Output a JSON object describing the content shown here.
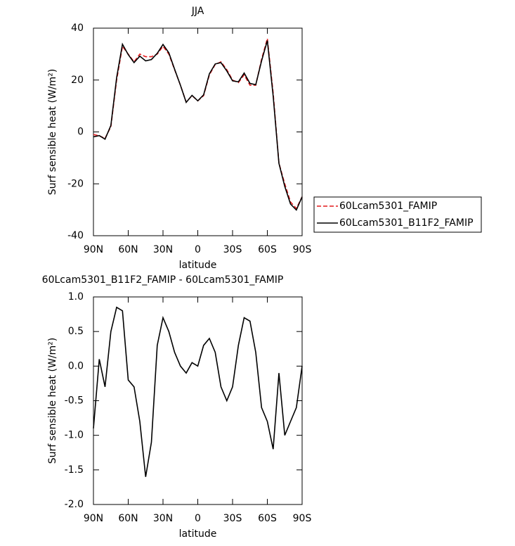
{
  "chart_data": [
    {
      "type": "line",
      "title": "JJA",
      "x_label": "latitude",
      "y_label": "Surf sensible heat (W/m²)",
      "x": [
        90,
        85,
        80,
        75,
        70,
        65,
        60,
        55,
        50,
        45,
        40,
        35,
        30,
        25,
        20,
        15,
        10,
        5,
        0,
        -5,
        -10,
        -15,
        -20,
        -25,
        -30,
        -35,
        -40,
        -45,
        -50,
        -55,
        -60,
        -65,
        -70,
        -75,
        -80,
        -85,
        -90
      ],
      "series": [
        {
          "name": "60Lcam5301_FAMIP",
          "color": "#e41a1c",
          "dash": true,
          "values": [
            -1,
            -1.5,
            -2.5,
            2,
            20,
            33,
            30,
            27,
            30,
            29,
            29,
            30,
            33,
            30,
            24,
            18,
            11.5,
            14,
            12,
            14,
            22,
            26,
            27,
            24,
            20,
            19,
            22,
            18,
            18,
            28,
            36,
            15,
            -12,
            -20,
            -27,
            -29.5,
            -25
          ]
        },
        {
          "name": "60Lcam5301_B11F2_FAMIP",
          "color": "#000000",
          "dash": false,
          "values": [
            -1.9,
            -1.4,
            -2.8,
            2.5,
            20.9,
            33.8,
            29.8,
            26.7,
            29.2,
            27.4,
            27.9,
            30.3,
            33.7,
            30.5,
            24.2,
            18,
            11.4,
            14.1,
            12,
            14.3,
            22.4,
            26.2,
            26.7,
            23.5,
            19.7,
            19.3,
            22.7,
            18.7,
            18.2,
            27.4,
            35.2,
            13.8,
            -12.1,
            -21,
            -27.8,
            -30.1,
            -25
          ]
        }
      ],
      "xlim": [
        90,
        -90
      ],
      "xticks": [
        {
          "value": 90,
          "label": "90N"
        },
        {
          "value": 60,
          "label": "60N"
        },
        {
          "value": 30,
          "label": "30N"
        },
        0,
        {
          "value": -30,
          "label": "30S"
        },
        {
          "value": -60,
          "label": "60S"
        },
        {
          "value": -90,
          "label": "90S"
        }
      ],
      "ylim": [
        -40,
        40
      ],
      "yticks": [
        -40,
        -20,
        0,
        20,
        40
      ],
      "legend": "right"
    },
    {
      "type": "line",
      "title": "60Lcam5301_B11F2_FAMIP - 60Lcam5301_FAMIP",
      "x_label": "latitude",
      "y_label": "Surf sensible heat (W/m²)",
      "x": [
        90,
        85,
        80,
        75,
        70,
        65,
        60,
        55,
        50,
        45,
        40,
        35,
        30,
        25,
        20,
        15,
        10,
        5,
        0,
        -5,
        -10,
        -15,
        -20,
        -25,
        -30,
        -35,
        -40,
        -45,
        -50,
        -55,
        -60,
        -65,
        -70,
        -75,
        -80,
        -85,
        -90
      ],
      "color": "#000000",
      "values": [
        -0.9,
        0.1,
        -0.3,
        0.5,
        0.85,
        0.8,
        -0.2,
        -0.3,
        -0.8,
        -1.6,
        -1.1,
        0.3,
        0.7,
        0.5,
        0.2,
        0,
        -0.1,
        0.05,
        0,
        0.3,
        0.4,
        0.2,
        -0.3,
        -0.5,
        -0.3,
        0.3,
        0.7,
        0.65,
        0.2,
        -0.6,
        -0.8,
        -1.2,
        -0.1,
        -1.0,
        -0.8,
        -0.6,
        0
      ],
      "xlim": [
        90,
        -90
      ],
      "xticks": [
        {
          "value": 90,
          "label": "90N"
        },
        {
          "value": 60,
          "label": "60N"
        },
        {
          "value": 30,
          "label": "30N"
        },
        0,
        {
          "value": -30,
          "label": "30S"
        },
        {
          "value": -60,
          "label": "60S"
        },
        {
          "value": -90,
          "label": "90S"
        }
      ],
      "ylim": [
        -2,
        1
      ],
      "yticks": [
        {
          "value": -2,
          "label": "-2.0"
        },
        -1.5,
        {
          "value": -1,
          "label": "-1.0"
        },
        -0.5,
        {
          "value": 0,
          "label": "0.0"
        },
        0.5,
        {
          "value": 1,
          "label": "1.0"
        }
      ]
    }
  ]
}
